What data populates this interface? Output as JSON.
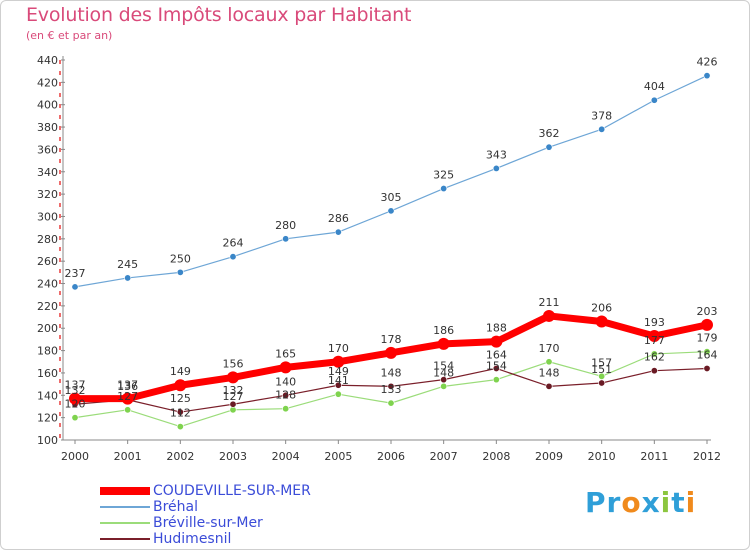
{
  "title": "Evolution des Impôts locaux par Habitant",
  "subtitle": "(en € et par an)",
  "logo": {
    "text": "Proxiti",
    "letters": [
      {
        "ch": "P",
        "color": "#2f9fd8"
      },
      {
        "ch": "r",
        "color": "#2f9fd8"
      },
      {
        "ch": "o",
        "color": "#f08a1c"
      },
      {
        "ch": "x",
        "color": "#2f9fd8"
      },
      {
        "ch": "i",
        "color": "#8cc63f"
      },
      {
        "ch": "t",
        "color": "#2f9fd8"
      },
      {
        "ch": "i",
        "color": "#f08a1c"
      }
    ]
  },
  "chart_data": {
    "type": "line",
    "x": [
      "2000",
      "2001",
      "2002",
      "2003",
      "2004",
      "2005",
      "2006",
      "2007",
      "2008",
      "2009",
      "2010",
      "2011",
      "2012"
    ],
    "ylim": [
      100,
      440
    ],
    "yticks": [
      100,
      120,
      140,
      160,
      180,
      200,
      220,
      240,
      260,
      280,
      300,
      320,
      340,
      360,
      380,
      400,
      420,
      440
    ],
    "grid": false,
    "legend_position": "bottom-left",
    "series": [
      {
        "name": "COUDEVILLE-SUR-MER",
        "color": "#ff0000",
        "width": 7,
        "marker_r": 6,
        "values": [
          137,
          137,
          149,
          156,
          165,
          170,
          178,
          186,
          188,
          211,
          206,
          193,
          203
        ]
      },
      {
        "name": "Bréhal",
        "color": "#6ea6d6",
        "width": 1.2,
        "marker_r": 3.2,
        "marker_color": "#3a86c8",
        "values": [
          237,
          245,
          250,
          264,
          280,
          286,
          305,
          325,
          343,
          362,
          378,
          404,
          426
        ]
      },
      {
        "name": "Bréville-sur-Mer",
        "color": "#9bdc7a",
        "width": 1.2,
        "marker_r": 3.2,
        "marker_color": "#7fd34e",
        "values": [
          120,
          127,
          112,
          127,
          128,
          141,
          133,
          148,
          154,
          170,
          157,
          177,
          179
        ]
      },
      {
        "name": "Hudimesnil",
        "color": "#7a1f2a",
        "width": 1.2,
        "marker_r": 3.2,
        "marker_color": "#6a1a24",
        "values": [
          132,
          136,
          125,
          132,
          140,
          149,
          148,
          154,
          164,
          148,
          151,
          162,
          164
        ]
      }
    ],
    "point_labels": [
      [
        137,
        137,
        149,
        156,
        165,
        170,
        178,
        186,
        188,
        211,
        206,
        193,
        203
      ],
      [
        237,
        245,
        250,
        264,
        280,
        286,
        305,
        325,
        343,
        362,
        378,
        404,
        426
      ],
      [
        120,
        127,
        112,
        127,
        128,
        141,
        133,
        148,
        154,
        170,
        157,
        177,
        179
      ],
      [
        132,
        136,
        125,
        132,
        140,
        149,
        148,
        154,
        164,
        148,
        151,
        162,
        164
      ]
    ]
  }
}
